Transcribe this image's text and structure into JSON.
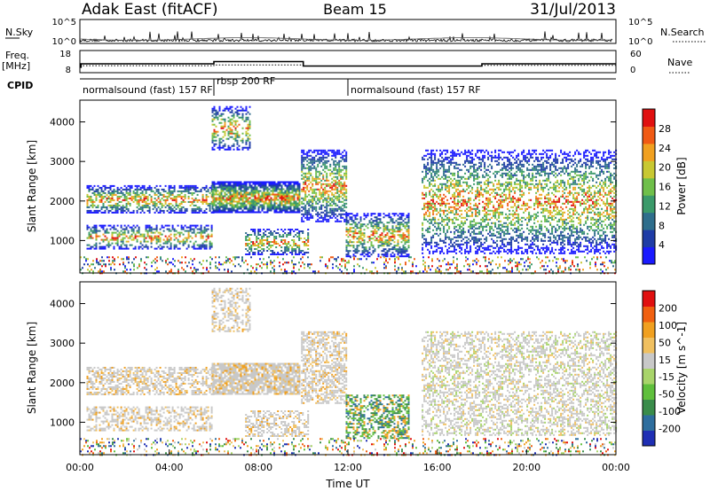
{
  "header": {
    "title": "Adak East (fitACF)",
    "beam": "Beam 15",
    "date": "31/Jul/2013"
  },
  "noise_panel": {
    "left_label": "N.Sky",
    "right_label": "N.Search",
    "tick_top": "10^5",
    "tick_bottom": "10^0"
  },
  "freq_panel": {
    "left_label_line1": "Freq.",
    "left_label_line2": "[MHz]",
    "left_tick_top": "18",
    "left_tick_bottom": "8",
    "right_label": "Nave",
    "right_tick_top": "60",
    "right_tick_bottom": "0"
  },
  "cpid_panel": {
    "label": "CPID",
    "segments": [
      {
        "start_hour": 0,
        "end_hour": 6,
        "text": "normalsound (fast) 157 RF"
      },
      {
        "start_hour": 6,
        "end_hour": 12,
        "text": "rbsp 200 RF"
      },
      {
        "start_hour": 12,
        "end_hour": 24,
        "text": "normalsound (fast) 157 RF"
      }
    ]
  },
  "chart_data": [
    {
      "type": "heatmap",
      "panel": "power",
      "ylabel": "Slant Range [km]",
      "xlim_hours": [
        0,
        24
      ],
      "ylim_km": [
        180,
        4550
      ],
      "yticks": [
        "1000",
        "2000",
        "3000",
        "4000"
      ],
      "colorbar": {
        "label": "Power [dB]",
        "ticks": [
          "4",
          "8",
          "12",
          "16",
          "20",
          "24",
          "28"
        ],
        "range": [
          0,
          32
        ],
        "colors": [
          "#1a1aff",
          "#1f3ca6",
          "#2f6e8c",
          "#3b9a6a",
          "#6fbf4a",
          "#c8c832",
          "#f0a020",
          "#f05a14",
          "#e01010"
        ]
      }
    },
    {
      "type": "heatmap",
      "panel": "velocity",
      "ylabel": "Slant Range [km]",
      "xlabel": "Time UT",
      "xlim_hours": [
        0,
        24
      ],
      "ylim_km": [
        180,
        4550
      ],
      "yticks": [
        "1000",
        "2000",
        "3000",
        "4000"
      ],
      "xticks": [
        "00:00",
        "04:00",
        "08:00",
        "12:00",
        "16:00",
        "20:00",
        "00:00"
      ],
      "colorbar": {
        "label": "Velocity [m s^-1]",
        "ticks": [
          "200",
          "100",
          "50",
          "15",
          "-15",
          "-50",
          "-100",
          "-200"
        ],
        "range": [
          -250,
          250
        ],
        "colors": [
          "#1f2fb4",
          "#2e6e9e",
          "#3a8c4a",
          "#5fbf3c",
          "#a8d46a",
          "#c8c8c8",
          "#f0c060",
          "#f0a020",
          "#f06010",
          "#e01010"
        ]
      }
    }
  ],
  "series": {
    "frequency_mhz": [
      [
        0,
        10.5
      ],
      [
        0.05,
        10.5
      ],
      [
        0.05,
        12
      ],
      [
        6.0,
        12
      ],
      [
        6.0,
        13
      ],
      [
        10.0,
        13
      ],
      [
        10.0,
        11
      ],
      [
        18.0,
        11
      ],
      [
        18.0,
        12
      ],
      [
        24,
        12
      ]
    ],
    "nave": [
      [
        0,
        19
      ],
      [
        6,
        19
      ],
      [
        6,
        21
      ],
      [
        10,
        21
      ],
      [
        10,
        18
      ],
      [
        18,
        18
      ],
      [
        18,
        20
      ],
      [
        24,
        20
      ]
    ],
    "echo_regions": [
      {
        "h0": 0.3,
        "h1": 6.0,
        "r0": 1700,
        "r1": 2400,
        "p": 0.55
      },
      {
        "h0": 0.3,
        "h1": 5.9,
        "r0": 800,
        "r1": 1400,
        "p": 0.45
      },
      {
        "h0": 5.9,
        "h1": 9.8,
        "r0": 1700,
        "r1": 2500,
        "p": 0.8
      },
      {
        "h0": 5.9,
        "h1": 7.6,
        "r0": 3300,
        "r1": 4400,
        "p": 0.5
      },
      {
        "h0": 7.4,
        "h1": 10.2,
        "r0": 650,
        "r1": 1300,
        "p": 0.5
      },
      {
        "h0": 9.9,
        "h1": 11.9,
        "r0": 1500,
        "r1": 3300,
        "p": 0.6
      },
      {
        "h0": 11.9,
        "h1": 14.7,
        "r0": 600,
        "r1": 1700,
        "p": 0.55
      },
      {
        "h0": 15.3,
        "h1": 24,
        "r0": 700,
        "r1": 3300,
        "p": 0.45
      },
      {
        "h0": 0,
        "h1": 24,
        "r0": 180,
        "r1": 600,
        "p": 0.22
      }
    ]
  }
}
